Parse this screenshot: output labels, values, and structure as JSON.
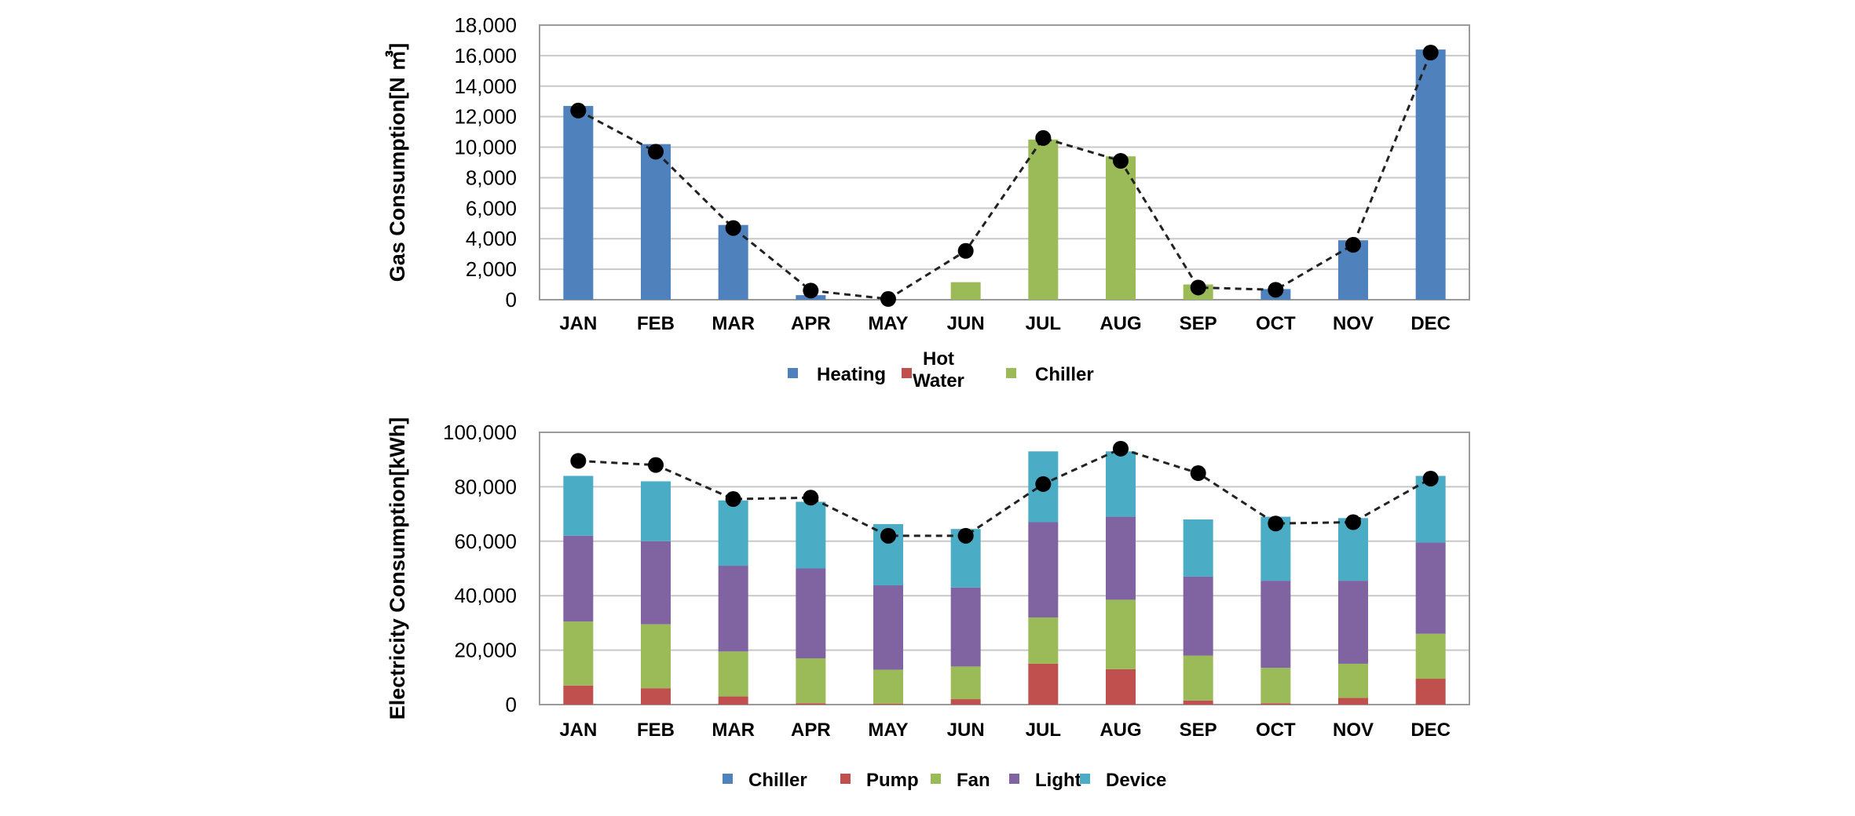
{
  "chart_data": [
    {
      "type": "bar",
      "title": "",
      "xlabel": "",
      "ylabel": "Gas Consumption[N ㎥]",
      "ylim": [
        0,
        18000
      ],
      "yticks": [
        0,
        2000,
        4000,
        6000,
        8000,
        10000,
        12000,
        14000,
        16000,
        18000
      ],
      "ytick_labels": [
        "0",
        "2,000",
        "4,000",
        "6,000",
        "8,000",
        "10,000",
        "12,000",
        "14,000",
        "16,000",
        "18,000"
      ],
      "categories": [
        "JAN",
        "FEB",
        "MAR",
        "APR",
        "MAY",
        "JUN",
        "JUL",
        "AUG",
        "SEP",
        "OCT",
        "NOV",
        "DEC"
      ],
      "stacked": true,
      "grid": true,
      "legend_position": "bottom",
      "series": [
        {
          "name": "Heating",
          "color": "#4f81bd",
          "values": [
            12700,
            10200,
            4900,
            300,
            0,
            0,
            0,
            0,
            0,
            700,
            3900,
            16400
          ]
        },
        {
          "name": "Hot\nWater",
          "color": "#c0504d",
          "values": [
            0,
            0,
            0,
            0,
            0,
            0,
            0,
            0,
            0,
            0,
            0,
            0
          ]
        },
        {
          "name": "Chiller",
          "color": "#9bbb59",
          "values": [
            0,
            0,
            0,
            0,
            0,
            1150,
            10500,
            9400,
            1000,
            0,
            0,
            0
          ]
        }
      ],
      "line": {
        "color": "#222222",
        "style": "dashed",
        "values": [
          12400,
          9700,
          4700,
          600,
          50,
          3200,
          10600,
          9100,
          800,
          650,
          3600,
          16200
        ]
      }
    },
    {
      "type": "bar",
      "title": "",
      "xlabel": "",
      "ylabel": "Electricity Consumption[kWh]",
      "ylim": [
        0,
        100000
      ],
      "yticks": [
        0,
        20000,
        40000,
        60000,
        80000,
        100000
      ],
      "ytick_labels": [
        "0",
        "20,000",
        "40,000",
        "60,000",
        "80,000",
        "100,000"
      ],
      "categories": [
        "JAN",
        "FEB",
        "MAR",
        "APR",
        "MAY",
        "JUN",
        "JUL",
        "AUG",
        "SEP",
        "OCT",
        "NOV",
        "DEC"
      ],
      "stacked": true,
      "grid": true,
      "legend_position": "bottom",
      "series": [
        {
          "name": "Chiller",
          "color": "#4f81bd",
          "values": [
            0,
            0,
            0,
            0,
            0,
            0,
            0,
            0,
            0,
            0,
            0,
            0
          ]
        },
        {
          "name": "Pump",
          "color": "#c0504d",
          "values": [
            7000,
            6000,
            3000,
            500,
            300,
            2000,
            15000,
            13000,
            1500,
            500,
            2500,
            9500
          ]
        },
        {
          "name": "Fan",
          "color": "#9bbb59",
          "values": [
            23500,
            23500,
            16500,
            16500,
            12500,
            12000,
            17000,
            25500,
            16500,
            13000,
            12500,
            16500
          ]
        },
        {
          "name": "Light",
          "color": "#8064a2",
          "values": [
            31500,
            30500,
            31500,
            33000,
            31000,
            29000,
            35000,
            30500,
            29000,
            32000,
            30500,
            33500
          ]
        },
        {
          "name": "Device",
          "color": "#4bacc6",
          "values": [
            22000,
            22000,
            24000,
            24500,
            22500,
            21500,
            26000,
            24000,
            21000,
            23500,
            23000,
            24500
          ]
        }
      ],
      "line": {
        "color": "#222222",
        "style": "dashed",
        "values": [
          89500,
          88000,
          75500,
          76000,
          62000,
          62000,
          81000,
          94000,
          85000,
          66500,
          67000,
          83000
        ]
      }
    }
  ]
}
